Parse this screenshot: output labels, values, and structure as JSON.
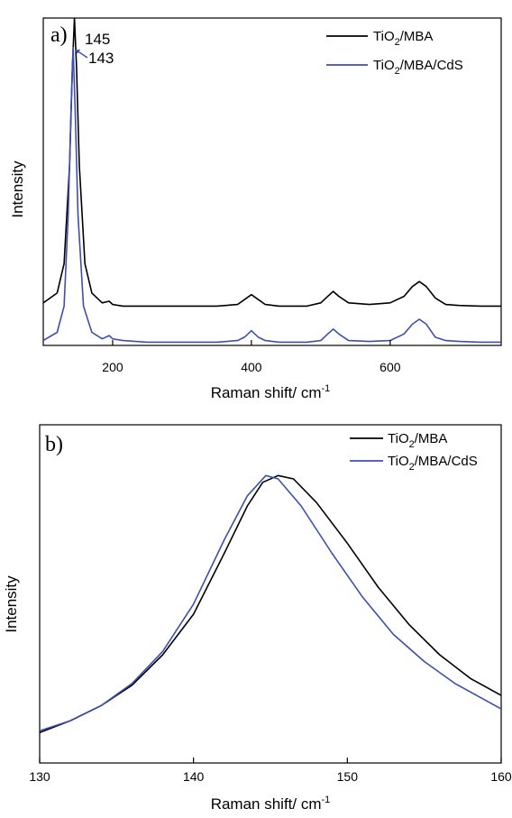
{
  "chart_data": [
    {
      "type": "line",
      "panel_label": "a)",
      "xlabel": "Raman shift/ cm",
      "xlabel_sup": "-1",
      "ylabel": "Intensity",
      "xlim": [
        100,
        760
      ],
      "ylim": [
        0,
        100
      ],
      "y_ticks_shown": false,
      "x_ticks": [
        200,
        400,
        600
      ],
      "x_tick_labels": [
        "200",
        "400",
        "600"
      ],
      "grid": false,
      "legend_position": "top-right",
      "series": [
        {
          "name": "TiO2/MBA",
          "legend": {
            "main": "TiO",
            "sub": "2",
            "rest": "/MBA"
          },
          "color": "#000000",
          "points": [
            [
              100,
              13
            ],
            [
              120,
              16
            ],
            [
              130,
              25
            ],
            [
              138,
              55
            ],
            [
              142,
              85
            ],
            [
              145,
              100
            ],
            [
              148,
              85
            ],
            [
              152,
              55
            ],
            [
              160,
              25
            ],
            [
              170,
              16
            ],
            [
              185,
              13
            ],
            [
              195,
              13.5
            ],
            [
              200,
              12.5
            ],
            [
              215,
              12
            ],
            [
              250,
              12
            ],
            [
              300,
              12
            ],
            [
              350,
              12
            ],
            [
              380,
              12.5
            ],
            [
              390,
              14
            ],
            [
              400,
              15.5
            ],
            [
              410,
              14
            ],
            [
              420,
              12.5
            ],
            [
              440,
              12
            ],
            [
              480,
              12
            ],
            [
              500,
              13
            ],
            [
              510,
              15
            ],
            [
              518,
              16.5
            ],
            [
              526,
              15
            ],
            [
              540,
              13
            ],
            [
              570,
              12.5
            ],
            [
              600,
              13
            ],
            [
              620,
              15
            ],
            [
              632,
              18
            ],
            [
              642,
              19.5
            ],
            [
              652,
              18
            ],
            [
              665,
              14.5
            ],
            [
              680,
              12.5
            ],
            [
              700,
              12.2
            ],
            [
              730,
              12
            ],
            [
              760,
              12
            ]
          ]
        },
        {
          "name": "TiO2/MBA/CdS",
          "legend": {
            "main": "TiO",
            "sub": "2",
            "rest": "/MBA/CdS"
          },
          "color": "#3d4fae",
          "points": [
            [
              100,
              1.5
            ],
            [
              120,
              4
            ],
            [
              130,
              12
            ],
            [
              136,
              40
            ],
            [
              140,
              72
            ],
            [
              143,
              91
            ],
            [
              146,
              72
            ],
            [
              150,
              40
            ],
            [
              158,
              12
            ],
            [
              170,
              4
            ],
            [
              185,
              2
            ],
            [
              195,
              3
            ],
            [
              200,
              2
            ],
            [
              215,
              1.5
            ],
            [
              250,
              1
            ],
            [
              300,
              1
            ],
            [
              350,
              1
            ],
            [
              380,
              1.5
            ],
            [
              390,
              2.5
            ],
            [
              400,
              4.5
            ],
            [
              410,
              2.5
            ],
            [
              420,
              1.5
            ],
            [
              440,
              1
            ],
            [
              480,
              1
            ],
            [
              500,
              1.5
            ],
            [
              510,
              3.5
            ],
            [
              518,
              5
            ],
            [
              526,
              3.5
            ],
            [
              540,
              1.5
            ],
            [
              570,
              1.2
            ],
            [
              600,
              1.5
            ],
            [
              620,
              3.5
            ],
            [
              632,
              6.5
            ],
            [
              642,
              8
            ],
            [
              652,
              6.5
            ],
            [
              665,
              2.5
            ],
            [
              680,
              1.5
            ],
            [
              700,
              1.2
            ],
            [
              730,
              1
            ],
            [
              760,
              1
            ]
          ]
        }
      ],
      "annotations": [
        {
          "text": "145",
          "x": 145,
          "y": 100
        },
        {
          "text": "143",
          "x": 143,
          "y": 91
        }
      ]
    },
    {
      "type": "line",
      "panel_label": "b)",
      "xlabel": "Raman shift/ cm",
      "xlabel_sup": "-1",
      "ylabel": "Intensity",
      "xlim": [
        130,
        160
      ],
      "ylim": [
        0,
        100
      ],
      "y_ticks_shown": false,
      "x_ticks": [
        130,
        140,
        150,
        160
      ],
      "x_tick_labels": [
        "130",
        "140",
        "150",
        "160"
      ],
      "grid": false,
      "legend_position": "top-right",
      "series": [
        {
          "name": "TiO2/MBA",
          "legend": {
            "main": "TiO",
            "sub": "2",
            "rest": "/MBA"
          },
          "color": "#000000",
          "points": [
            [
              130,
              9
            ],
            [
              132,
              12.5
            ],
            [
              134,
              17
            ],
            [
              136,
              23
            ],
            [
              138,
              32
            ],
            [
              140,
              44
            ],
            [
              142,
              62
            ],
            [
              143.5,
              76
            ],
            [
              144.5,
              83
            ],
            [
              145.5,
              85
            ],
            [
              146.5,
              84
            ],
            [
              148,
              77
            ],
            [
              150,
              65
            ],
            [
              152,
              52
            ],
            [
              154,
              41
            ],
            [
              156,
              32
            ],
            [
              158,
              25
            ],
            [
              160,
              20
            ]
          ]
        },
        {
          "name": "TiO2/MBA/CdS",
          "legend": {
            "main": "TiO",
            "sub": "2",
            "rest": "/MBA/CdS"
          },
          "color": "#3d4fae",
          "points": [
            [
              130,
              9.5
            ],
            [
              132,
              12.5
            ],
            [
              134,
              17
            ],
            [
              136,
              23.5
            ],
            [
              138,
              33
            ],
            [
              140,
              47
            ],
            [
              142,
              66
            ],
            [
              143.5,
              79
            ],
            [
              144.7,
              85
            ],
            [
              145.5,
              84
            ],
            [
              147,
              76
            ],
            [
              149,
              62
            ],
            [
              151,
              49
            ],
            [
              153,
              38
            ],
            [
              155,
              30
            ],
            [
              157,
              23.5
            ],
            [
              160,
              16
            ]
          ]
        }
      ],
      "annotations": []
    }
  ]
}
